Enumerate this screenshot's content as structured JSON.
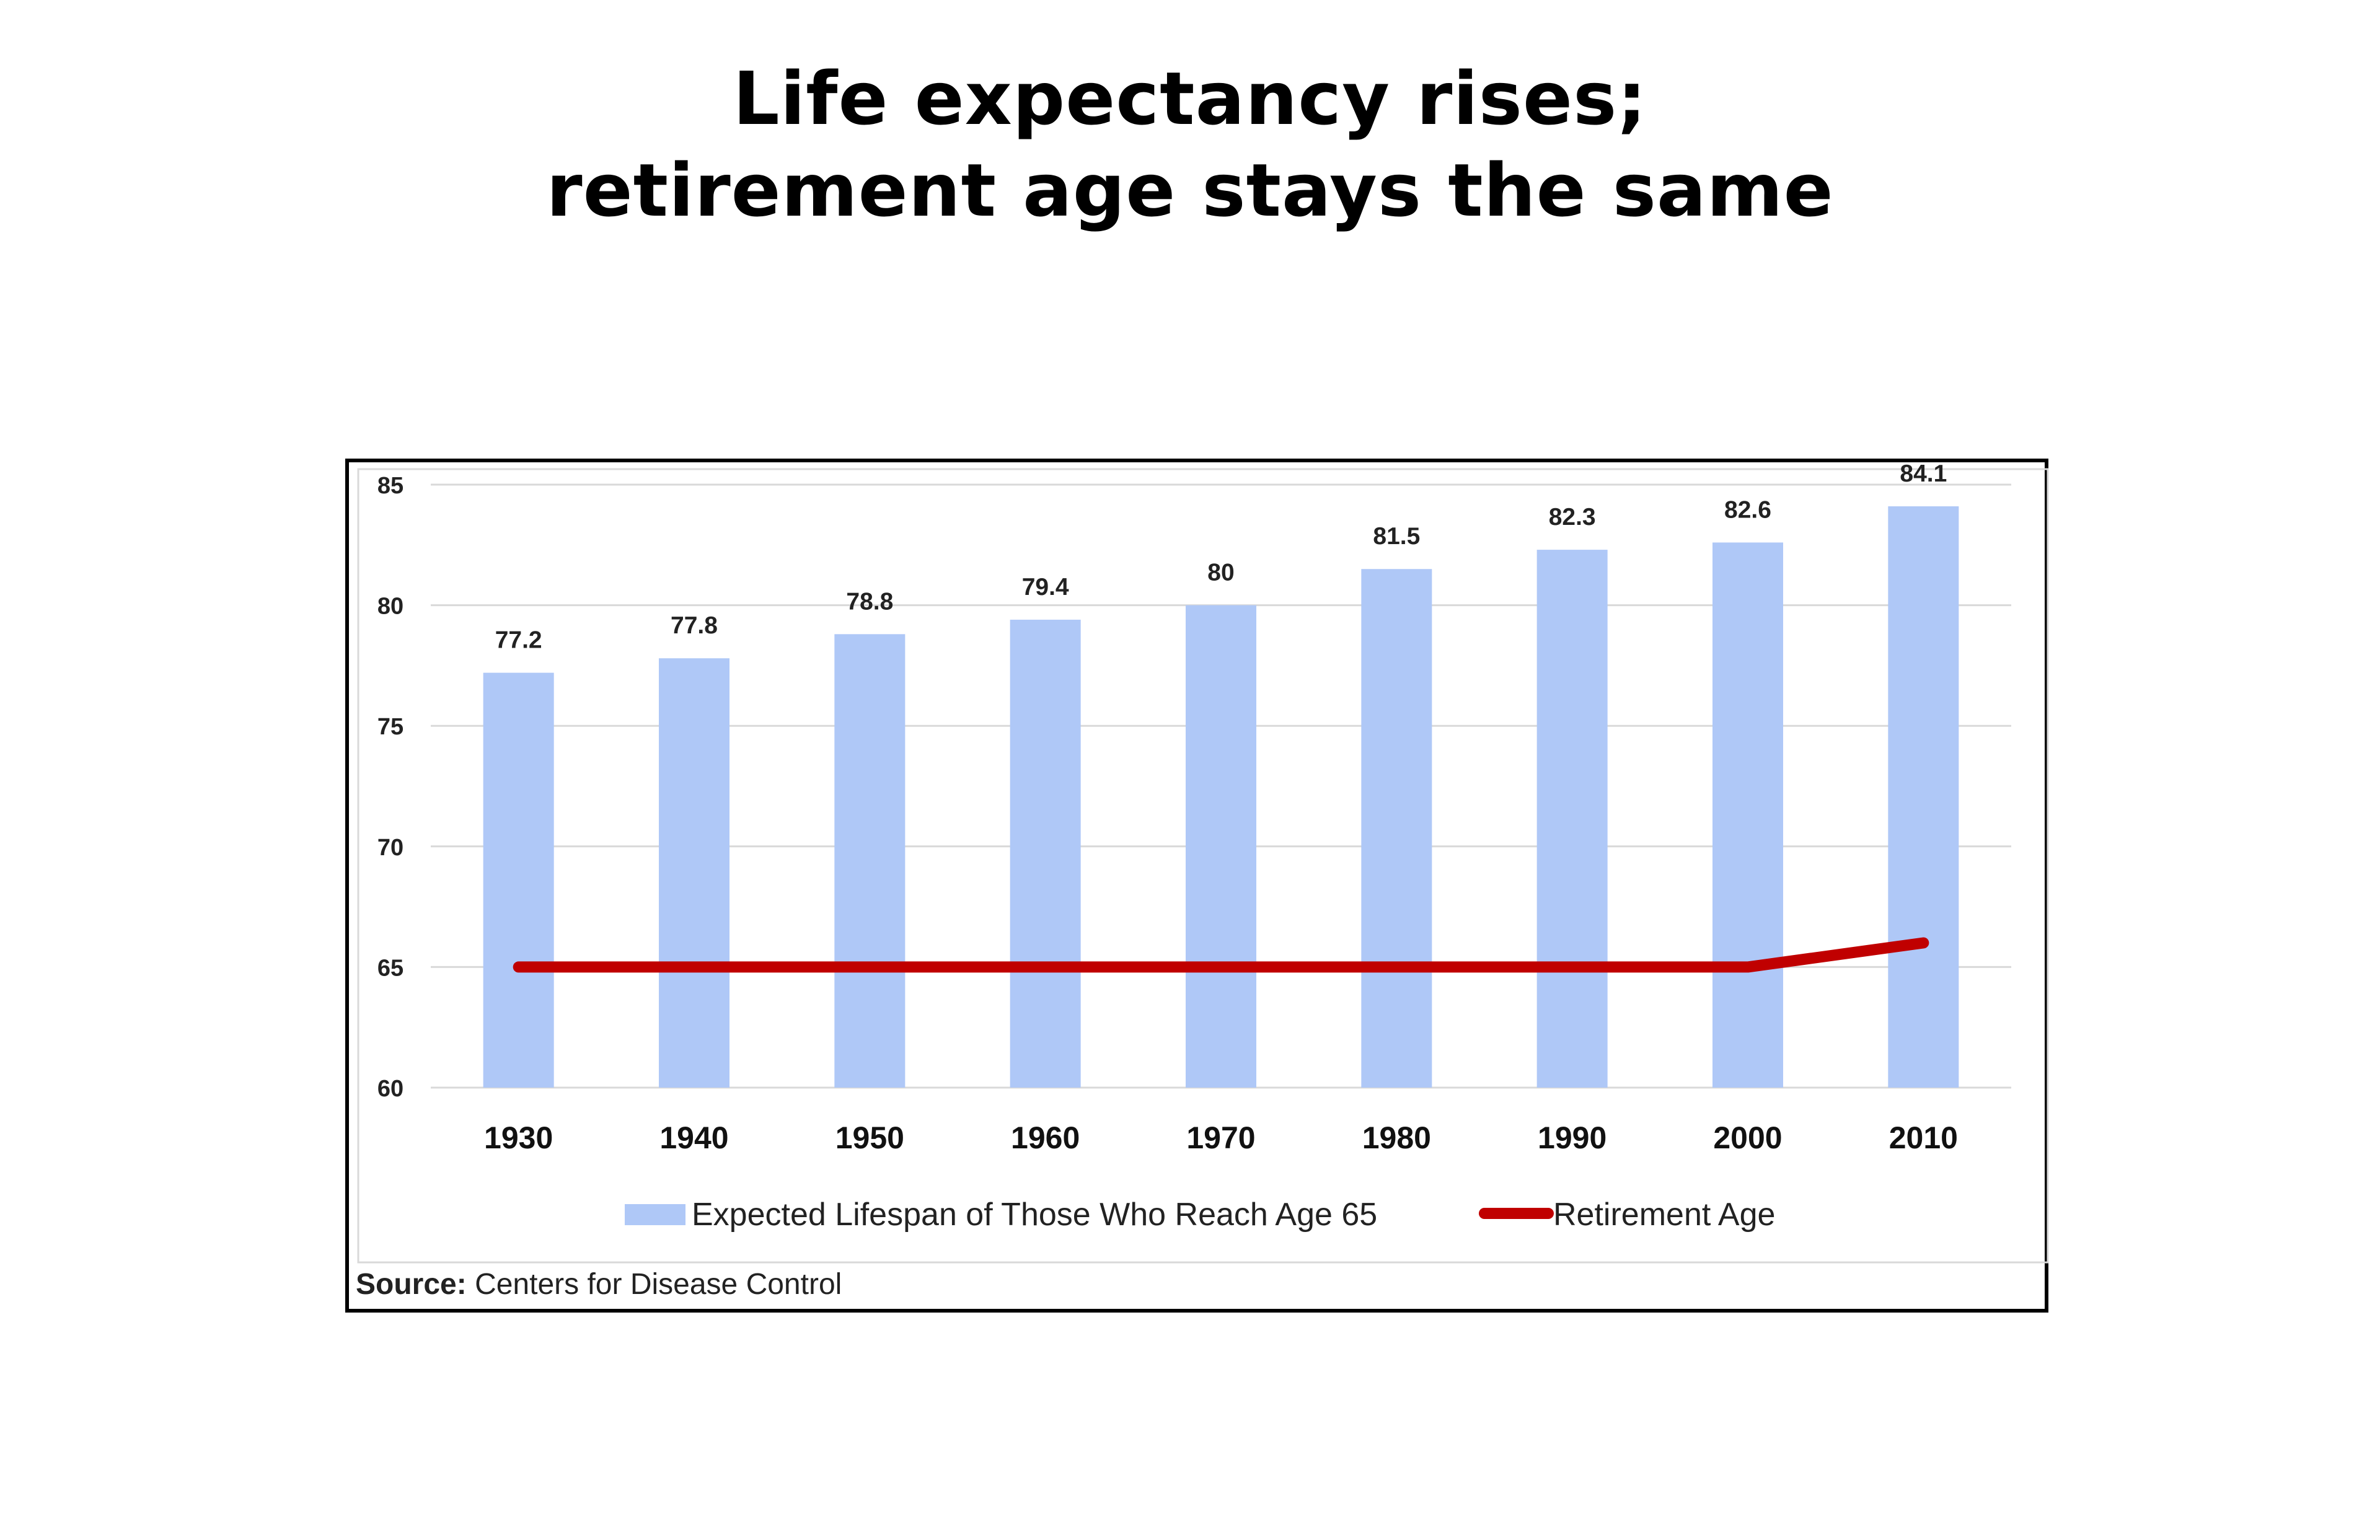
{
  "title": {
    "line1": "Life expectancy rises;",
    "line2": "retirement age stays the same"
  },
  "source": {
    "label": "Source:",
    "text": "Centers for Disease Control"
  },
  "colors": {
    "bar": "#afc8f7",
    "line": "#c00000",
    "grid": "#d9d9d9",
    "frame": "#000000"
  },
  "chart_data": {
    "type": "bar",
    "categories": [
      "1930",
      "1940",
      "1950",
      "1960",
      "1970",
      "1980",
      "1990",
      "2000",
      "2010"
    ],
    "series": [
      {
        "name": "Expected Lifespan of Those Who Reach Age 65",
        "type": "bar",
        "values": [
          77.2,
          77.8,
          78.8,
          79.4,
          80,
          81.5,
          82.3,
          82.6,
          84.1
        ],
        "labels": [
          "77.2",
          "77.8",
          "78.8",
          "79.4",
          "80",
          "81.5",
          "82.3",
          "82.6",
          "84.1"
        ]
      },
      {
        "name": "Retirement Age",
        "type": "line",
        "values": [
          65,
          65,
          65,
          65,
          65,
          65,
          65,
          65,
          66
        ]
      }
    ],
    "ylim": [
      60,
      85
    ],
    "yticks": [
      60,
      65,
      70,
      75,
      80,
      85
    ],
    "ytick_labels": [
      "60",
      "65",
      "70",
      "75",
      "80",
      "85"
    ],
    "grid": true,
    "legend_position": "bottom"
  }
}
